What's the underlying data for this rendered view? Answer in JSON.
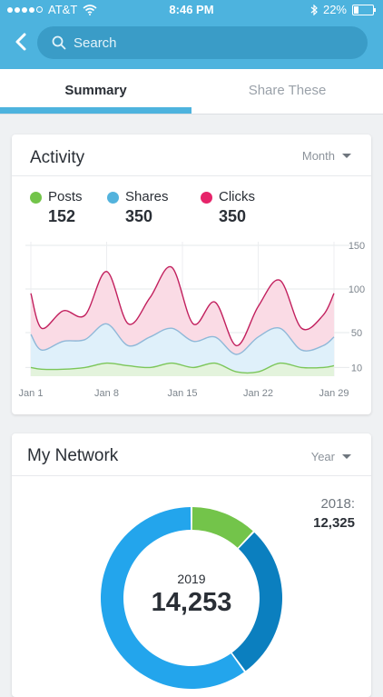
{
  "status_bar": {
    "carrier": "AT&T",
    "time": "8:46 PM",
    "battery": "22%"
  },
  "search": {
    "placeholder": "Search"
  },
  "tabs": [
    {
      "label": "Summary",
      "active": true
    },
    {
      "label": "Share These",
      "active": false
    }
  ],
  "activity": {
    "title": "Activity",
    "period": "Month",
    "legend": [
      {
        "name": "Posts",
        "value": "152",
        "color": "#73c44a"
      },
      {
        "name": "Shares",
        "value": "350",
        "color": "#53b3dd"
      },
      {
        "name": "Clicks",
        "value": "350",
        "color": "#e6246a"
      }
    ]
  },
  "network": {
    "title": "My Network",
    "period": "Year",
    "previous_year_label": "2018:",
    "previous_year_value": "12,325",
    "center_year": "2019",
    "center_value": "14,253"
  },
  "chart_data": [
    {
      "type": "area",
      "x_tick_labels": [
        "Jan 1",
        "Jan 8",
        "Jan 15",
        "Jan 22",
        "Jan 29"
      ],
      "y_tick_labels": [
        "150",
        "100",
        "50",
        "10"
      ],
      "ylim": [
        0,
        150
      ],
      "x": [
        1,
        2,
        4,
        6,
        8,
        10,
        12,
        14,
        16,
        18,
        20,
        22,
        24,
        26,
        28,
        29
      ],
      "series": [
        {
          "name": "Posts",
          "color": "#73c44a",
          "values": [
            10,
            8,
            8,
            10,
            15,
            12,
            10,
            15,
            10,
            15,
            5,
            5,
            15,
            10,
            10,
            12
          ]
        },
        {
          "name": "Shares",
          "color": "#53b3dd",
          "values": [
            48,
            30,
            40,
            42,
            60,
            35,
            45,
            55,
            40,
            45,
            25,
            45,
            55,
            30,
            35,
            45
          ]
        },
        {
          "name": "Clicks",
          "color": "#e6246a",
          "values": [
            95,
            55,
            75,
            70,
            120,
            60,
            90,
            125,
            60,
            85,
            35,
            80,
            110,
            55,
            70,
            95
          ]
        }
      ]
    },
    {
      "type": "pie",
      "segments": [
        {
          "color": "#73c44a",
          "value": 12
        },
        {
          "color": "#0b7fbf",
          "value": 28
        },
        {
          "color": "#23a5ec",
          "value": 60
        }
      ]
    }
  ]
}
